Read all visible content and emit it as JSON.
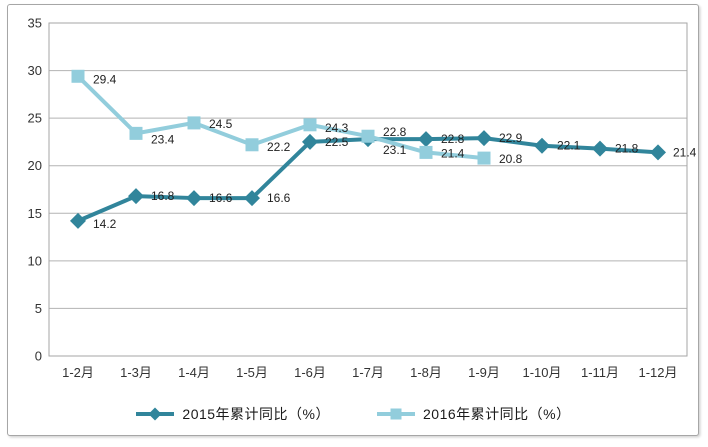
{
  "chart_data": {
    "type": "line",
    "title": "",
    "xlabel": "",
    "ylabel": "",
    "categories": [
      "1-2月",
      "1-3月",
      "1-4月",
      "1-5月",
      "1-6月",
      "1-7月",
      "1-8月",
      "1-9月",
      "1-10月",
      "1-11月",
      "1-12月"
    ],
    "series": [
      {
        "name": "2015年累计同比（%）",
        "marker": "diamond",
        "color": "#31859B",
        "values": [
          14.2,
          16.8,
          16.6,
          16.6,
          22.5,
          22.8,
          22.8,
          22.9,
          22.1,
          21.8,
          21.4
        ],
        "label_dy": [
          7,
          4,
          4,
          4,
          4,
          -3,
          4,
          4,
          4,
          4,
          4
        ]
      },
      {
        "name": "2016年累计同比（%）",
        "marker": "square",
        "color": "#92CDDC",
        "values": [
          29.4,
          23.4,
          24.5,
          22.2,
          24.3,
          23.1,
          21.4,
          20.8
        ],
        "label_dy": [
          7,
          10,
          5,
          6,
          7,
          18,
          5,
          5
        ]
      }
    ],
    "ylim": [
      0,
      35
    ],
    "ytick_step": 5,
    "yticks": [
      "0",
      "5",
      "10",
      "15",
      "20",
      "25",
      "30",
      "35"
    ],
    "grid": true,
    "legend_position": "bottom",
    "data_labels": true,
    "colors": {
      "plot_border": "#a6a6a6",
      "gridline": "#b3b3b3",
      "axis_text": "#333333",
      "data_label_text": "#1f1f1f",
      "frame_border": "#a6a6a6",
      "background": "#ffffff"
    }
  },
  "legend": {
    "items": [
      {
        "label": "2015年累计同比（%）"
      },
      {
        "label": "2016年累计同比（%）"
      }
    ]
  }
}
